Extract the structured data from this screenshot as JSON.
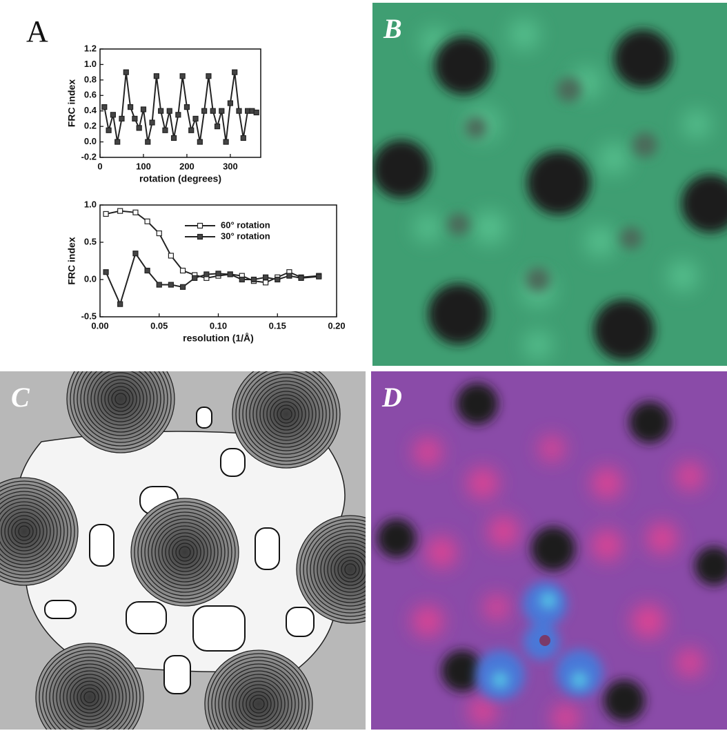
{
  "panel_labels": [
    "A",
    "B",
    "C",
    "D"
  ],
  "chart_data": [
    {
      "type": "line",
      "xlabel": "rotation (degrees)",
      "ylabel": "FRC index",
      "x": [
        10,
        20,
        30,
        40,
        50,
        60,
        70,
        80,
        90,
        100,
        110,
        120,
        130,
        140,
        150,
        160,
        170,
        180,
        190,
        200,
        210,
        220,
        230,
        240,
        250,
        260,
        270,
        280,
        290,
        300,
        310,
        320,
        330,
        340,
        350,
        360
      ],
      "series": [
        {
          "color": "#222",
          "fill": "#444",
          "values": [
            0.45,
            0.15,
            0.35,
            0.0,
            0.3,
            0.9,
            0.45,
            0.3,
            0.18,
            0.42,
            0.0,
            0.25,
            0.85,
            0.4,
            0.15,
            0.4,
            0.05,
            0.35,
            0.85,
            0.45,
            0.15,
            0.3,
            0.0,
            0.4,
            0.85,
            0.4,
            0.2,
            0.4,
            0.0,
            0.5,
            0.9,
            0.4,
            0.05,
            0.4,
            0.4,
            0.38
          ]
        }
      ],
      "xlim": [
        0,
        370
      ],
      "xticks": [
        0,
        100,
        200,
        300
      ],
      "ylim": [
        -0.2,
        1.2
      ],
      "yticks": [
        {
          "value": -0.2,
          "label": "-0.2"
        },
        {
          "value": 0,
          "label": "0.0"
        },
        {
          "value": 0.2,
          "label": "0.2"
        },
        {
          "value": 0.4,
          "label": "0.4"
        },
        {
          "value": 0.6,
          "label": "0.6"
        },
        {
          "value": 0.8,
          "label": "0.8"
        },
        {
          "value": 1,
          "label": "1.0"
        },
        {
          "value": 1.2,
          "label": "1.2"
        }
      ]
    },
    {
      "type": "line",
      "xlabel": "resolution (1/Å)",
      "ylabel": "FRC index",
      "legend": "upper right",
      "x": [
        0.005,
        0.017,
        0.03,
        0.04,
        0.05,
        0.06,
        0.07,
        0.08,
        0.09,
        0.1,
        0.11,
        0.12,
        0.13,
        0.14,
        0.15,
        0.16,
        0.17,
        0.185
      ],
      "series": [
        {
          "name": "60° rotation",
          "color": "#222",
          "fill": "#fff",
          "values": [
            0.88,
            0.92,
            0.9,
            0.78,
            0.62,
            0.32,
            0.12,
            0.06,
            0.02,
            0.05,
            0.07,
            0.05,
            -0.02,
            -0.04,
            0.03,
            0.1,
            0.03,
            0.05
          ]
        },
        {
          "name": "30° rotation",
          "color": "#222",
          "fill": "#444",
          "values": [
            0.1,
            -0.33,
            0.35,
            0.12,
            -0.07,
            -0.07,
            -0.1,
            0.02,
            0.07,
            0.08,
            0.07,
            0.0,
            0.0,
            0.03,
            0.0,
            0.05,
            0.02,
            0.04
          ]
        }
      ],
      "xlim": [
        0,
        0.2
      ],
      "xticks": [
        {
          "value": 0,
          "label": "0.00"
        },
        {
          "value": 0.05,
          "label": "0.05"
        },
        {
          "value": 0.1,
          "label": "0.10"
        },
        {
          "value": 0.15,
          "label": "0.15"
        },
        {
          "value": 0.2,
          "label": "0.20"
        }
      ],
      "ylim": [
        -0.5,
        1
      ],
      "yticks": [
        {
          "value": -0.5,
          "label": "-0.5"
        },
        {
          "value": 0,
          "label": "0.0"
        },
        {
          "value": 0.5,
          "label": "0.5"
        },
        {
          "value": 1,
          "label": "1.0"
        }
      ]
    }
  ]
}
